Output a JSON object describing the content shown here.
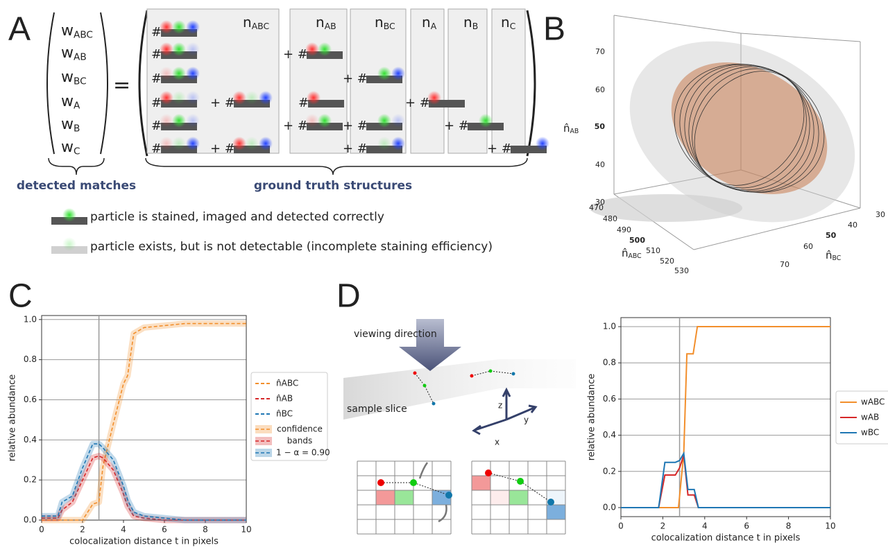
{
  "panel_a": {
    "label": "A",
    "weights": [
      {
        "main": "w",
        "sub": "ABC"
      },
      {
        "main": "w",
        "sub": "AB"
      },
      {
        "main": "w",
        "sub": "BC"
      },
      {
        "main": "w",
        "sub": "A"
      },
      {
        "main": "w",
        "sub": "B"
      },
      {
        "main": "w",
        "sub": "C"
      }
    ],
    "equals": "=",
    "columns": [
      {
        "main": "n",
        "sub": "ABC"
      },
      {
        "main": "n",
        "sub": "AB"
      },
      {
        "main": "n",
        "sub": "BC"
      },
      {
        "main": "n",
        "sub": "A"
      },
      {
        "main": "n",
        "sub": "B"
      },
      {
        "main": "n",
        "sub": "C"
      }
    ],
    "hash": "#",
    "plus_hash": "+ #",
    "left_brace_label": "detected matches",
    "right_brace_label": "ground truth structures",
    "legend": [
      "particle is stained, imaged and detected correctly",
      "particle exists, but is not detectable (incomplete staining efficiency)"
    ]
  },
  "panel_b": {
    "label": "B",
    "z_label": {
      "main": "n̂",
      "sub": "AB"
    },
    "x_label": {
      "main": "n̂",
      "sub": "ABC"
    },
    "y_label": {
      "main": "n̂",
      "sub": "BC"
    },
    "z_ticks": [
      70,
      60,
      50,
      40,
      30
    ],
    "x_ticks": [
      470,
      480,
      490,
      500,
      510,
      520,
      530
    ],
    "y_ticks": [
      30,
      40,
      50,
      60,
      70
    ]
  },
  "panel_c_label": "C",
  "panel_d": {
    "label": "D",
    "viewing_direction": "viewing direction",
    "sample_slice": "sample slice",
    "axes": [
      "x",
      "y",
      "z"
    ]
  },
  "chart_data": [
    {
      "type": "line",
      "xlabel": "colocalization distance t in pixels",
      "ylabel": "relative abundance",
      "xlim": [
        0,
        10
      ],
      "ylim": [
        0,
        1.02
      ],
      "xticks": [
        0,
        2,
        4,
        6,
        8,
        10
      ],
      "yticks": [
        {
          "value": 0,
          "label": "0.0"
        },
        0.2,
        0.4,
        0.6,
        0.8,
        {
          "value": 1,
          "label": "1.0"
        }
      ],
      "grid": "y",
      "vline": 2.8,
      "dashed": true,
      "series": [
        {
          "name": "n̂ABC",
          "color": "#f28e2b",
          "x": [
            0,
            0.8,
            1,
            1.5,
            2,
            2.5,
            2.8,
            3,
            3.5,
            4,
            4.2,
            4.5,
            5,
            6,
            7,
            8,
            9,
            10
          ],
          "values": [
            0,
            0,
            0,
            0,
            0,
            0.08,
            0.09,
            0.27,
            0.48,
            0.68,
            0.72,
            0.93,
            0.96,
            0.97,
            0.98,
            0.98,
            0.98,
            0.98
          ]
        },
        {
          "name": "n̂AB",
          "color": "#d62728",
          "x": [
            0,
            0.8,
            1,
            1.5,
            2,
            2.5,
            2.8,
            3,
            3.5,
            4,
            4.2,
            4.5,
            5,
            6,
            7,
            8,
            9,
            10
          ],
          "values": [
            0.01,
            0.01,
            0.05,
            0.09,
            0.2,
            0.31,
            0.32,
            0.31,
            0.25,
            0.13,
            0.07,
            0.02,
            0.01,
            0,
            0,
            0,
            0,
            0
          ]
        },
        {
          "name": "n̂BC",
          "color": "#1f77b4",
          "x": [
            0,
            0.8,
            1,
            1.5,
            2,
            2.5,
            2.8,
            3,
            3.5,
            4,
            4.2,
            4.5,
            5,
            6,
            7,
            8,
            9,
            10
          ],
          "values": [
            0.02,
            0.02,
            0.09,
            0.12,
            0.26,
            0.38,
            0.38,
            0.36,
            0.3,
            0.17,
            0.1,
            0.04,
            0.02,
            0.01,
            0,
            0,
            0,
            0
          ]
        }
      ],
      "band_legend": [
        "confidence",
        "bands",
        "1 − α = 0.90"
      ]
    },
    {
      "type": "line",
      "xlabel": "colocalization distance t in pixels",
      "ylabel": "relative abundance",
      "xlim": [
        0,
        10
      ],
      "ylim": [
        -0.05,
        1.05
      ],
      "xticks": [
        0,
        2,
        4,
        6,
        8,
        10
      ],
      "yticks": [
        {
          "value": 0,
          "label": "0.0"
        },
        0.2,
        0.4,
        0.6,
        0.8,
        {
          "value": 1,
          "label": "1.0"
        }
      ],
      "grid": "y",
      "vline": 2.8,
      "dashed": false,
      "series": [
        {
          "name": "wABC",
          "color": "#f28e2b",
          "x": [
            0,
            2.75,
            3,
            3.15,
            3.45,
            3.65,
            10
          ],
          "values": [
            0,
            0,
            0.3,
            0.85,
            0.85,
            1,
            1
          ]
        },
        {
          "name": "wAB",
          "color": "#d62728",
          "x": [
            0,
            1.8,
            2.1,
            2.6,
            2.8,
            3,
            3.2,
            3.5,
            3.7,
            10
          ],
          "values": [
            0,
            0,
            0.18,
            0.18,
            0.22,
            0.29,
            0.07,
            0.07,
            0,
            0
          ]
        },
        {
          "name": "wBC",
          "color": "#1f77b4",
          "x": [
            0,
            1.8,
            2.1,
            2.6,
            2.8,
            3,
            3.2,
            3.5,
            3.7,
            10
          ],
          "values": [
            0,
            0,
            0.25,
            0.25,
            0.26,
            0.3,
            0.1,
            0.1,
            0,
            0
          ]
        }
      ]
    }
  ]
}
